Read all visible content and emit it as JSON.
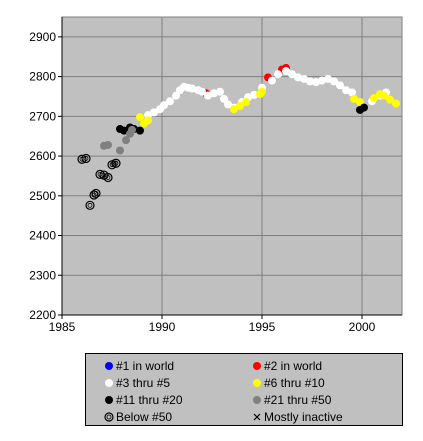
{
  "chart_data": {
    "type": "scatter",
    "title": "",
    "xlabel": "",
    "ylabel": "",
    "xlim": [
      1985,
      2002
    ],
    "ylim": [
      2200,
      2950
    ],
    "x_ticks": [
      1985,
      1990,
      1995,
      2000
    ],
    "y_ticks": [
      2200,
      2300,
      2400,
      2500,
      2600,
      2700,
      2800,
      2900
    ],
    "x_tick_labels": [
      "1985",
      "1990",
      "1995",
      "2000"
    ],
    "y_tick_labels": [
      "2200",
      "2300",
      "2400",
      "2500",
      "2600",
      "2700",
      "2800",
      "2900"
    ],
    "grid": true,
    "plot_background": "#c0c0c0",
    "series": [
      {
        "name": "#1 in world",
        "color": "#0000ff",
        "marker": "filled",
        "points": []
      },
      {
        "name": "#2 in world",
        "color": "#ff0000",
        "marker": "filled",
        "points": [
          [
            1992.2,
            2758
          ],
          [
            1995.3,
            2798
          ],
          [
            1996.0,
            2818
          ],
          [
            1996.2,
            2822
          ]
        ]
      },
      {
        "name": "#3 thru #5",
        "color": "#ffffff",
        "marker": "filled",
        "points": [
          [
            1989.3,
            2703
          ],
          [
            1989.6,
            2710
          ],
          [
            1989.9,
            2718
          ],
          [
            1990.1,
            2728
          ],
          [
            1990.4,
            2738
          ],
          [
            1990.7,
            2752
          ],
          [
            1990.9,
            2766
          ],
          [
            1991.1,
            2774
          ],
          [
            1991.3,
            2772
          ],
          [
            1991.5,
            2770
          ],
          [
            1991.8,
            2766
          ],
          [
            1992.0,
            2762
          ],
          [
            1992.3,
            2752
          ],
          [
            1992.6,
            2758
          ],
          [
            1992.9,
            2762
          ],
          [
            1993.1,
            2744
          ],
          [
            1993.3,
            2730
          ],
          [
            1993.6,
            2722
          ],
          [
            1994.0,
            2736
          ],
          [
            1994.3,
            2748
          ],
          [
            1994.6,
            2754
          ],
          [
            1995.0,
            2772
          ],
          [
            1995.5,
            2790
          ],
          [
            1995.8,
            2806
          ],
          [
            1996.2,
            2814
          ],
          [
            1996.5,
            2806
          ],
          [
            1996.8,
            2798
          ],
          [
            1997.1,
            2794
          ],
          [
            1997.4,
            2788
          ],
          [
            1997.7,
            2786
          ],
          [
            1998.0,
            2790
          ],
          [
            1998.3,
            2794
          ],
          [
            1998.6,
            2788
          ],
          [
            1998.9,
            2778
          ],
          [
            1999.2,
            2766
          ],
          [
            1999.5,
            2760
          ],
          [
            2000.5,
            2738
          ],
          [
            2000.9,
            2752
          ],
          [
            2001.2,
            2760
          ]
        ]
      },
      {
        "name": "#6 thru #10",
        "color": "#ffff00",
        "marker": "filled",
        "points": [
          [
            1988.9,
            2698
          ],
          [
            1989.1,
            2682
          ],
          [
            1989.3,
            2690
          ],
          [
            1993.6,
            2718
          ],
          [
            1993.9,
            2726
          ],
          [
            1994.2,
            2736
          ],
          [
            1994.9,
            2756
          ],
          [
            1995.0,
            2762
          ],
          [
            1999.6,
            2744
          ],
          [
            1999.9,
            2736
          ],
          [
            2000.6,
            2746
          ],
          [
            2000.9,
            2756
          ],
          [
            2001.1,
            2752
          ],
          [
            2001.4,
            2742
          ],
          [
            2001.7,
            2732
          ]
        ]
      },
      {
        "name": "#11 thru #20",
        "color": "#000000",
        "marker": "filled",
        "points": [
          [
            1987.9,
            2668
          ],
          [
            1988.1,
            2664
          ],
          [
            1988.4,
            2672
          ],
          [
            1988.6,
            2668
          ],
          [
            1988.9,
            2664
          ],
          [
            1999.9,
            2716
          ],
          [
            2000.1,
            2722
          ]
        ]
      },
      {
        "name": "#21 thru #50",
        "color": "#808080",
        "marker": "filled",
        "points": [
          [
            1987.1,
            2626
          ],
          [
            1987.3,
            2628
          ],
          [
            1987.6,
            2582
          ],
          [
            1987.9,
            2614
          ],
          [
            1988.2,
            2640
          ],
          [
            1988.4,
            2656
          ],
          [
            1988.5,
            2666
          ]
        ]
      },
      {
        "name": "Below #50",
        "color": "#000000",
        "marker": "open",
        "points": [
          [
            1986.0,
            2592
          ],
          [
            1986.2,
            2594
          ],
          [
            1986.4,
            2476
          ],
          [
            1986.6,
            2502
          ],
          [
            1986.7,
            2506
          ],
          [
            1986.9,
            2554
          ],
          [
            1987.1,
            2552
          ],
          [
            1987.3,
            2546
          ],
          [
            1987.5,
            2578
          ],
          [
            1987.7,
            2582
          ]
        ]
      },
      {
        "name": "Mostly inactive",
        "color": "#000000",
        "marker": "x",
        "points": []
      }
    ]
  },
  "legend": {
    "items": [
      {
        "label": "#1 in world",
        "color": "#0000ff",
        "marker": "filled"
      },
      {
        "label": "#2 in world",
        "color": "#ff0000",
        "marker": "filled"
      },
      {
        "label": "#3 thru #5",
        "color": "#ffffff",
        "marker": "filled"
      },
      {
        "label": "#6 thru #10",
        "color": "#ffff00",
        "marker": "filled"
      },
      {
        "label": "#11 thru #20",
        "color": "#000000",
        "marker": "filled"
      },
      {
        "label": "#21 thru #50",
        "color": "#808080",
        "marker": "filled"
      },
      {
        "label": "Below #50",
        "color": "#000000",
        "marker": "open"
      },
      {
        "label": "Mostly inactive",
        "color": "#000000",
        "marker": "x"
      }
    ]
  }
}
